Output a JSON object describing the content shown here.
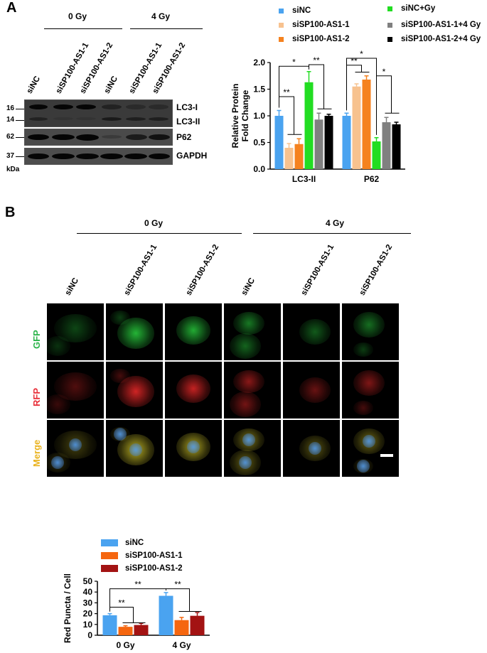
{
  "panelA": {
    "letter": "A",
    "dose_0": "0 Gy",
    "dose_4": "4 Gy",
    "lanes": [
      "siNC",
      "siSP100-AS1-1",
      "siSP100-AS1-2",
      "siNC",
      "siSP100-AS1-1",
      "siSP100-AS1-2"
    ],
    "markers": [
      "16",
      "14",
      "62",
      "37"
    ],
    "kda": "kDa",
    "bands": [
      "LC3-I",
      "LC3-II",
      "P62",
      "GAPDH"
    ]
  },
  "panelB": {
    "letter": "B",
    "dose_0": "0 Gy",
    "dose_4": "4 Gy",
    "columns": [
      "siNC",
      "siSP100-AS1-1",
      "siSP100-AS1-2",
      "siNC",
      "siSP100-AS1-1",
      "siSP100-AS1-2"
    ],
    "rows": [
      "GFP",
      "RFP",
      "Merge"
    ],
    "row_colors": {
      "GFP": "#2bb34a",
      "RFP": "#e8303a",
      "Merge": "#e9b21c"
    }
  },
  "chart_data": [
    {
      "type": "bar",
      "ylabel": "Relative Protein\nFold Change",
      "ylim": [
        0,
        2.0
      ],
      "yticks": [
        "0.0",
        "0.5",
        "1.0",
        "1.5",
        "2.0"
      ],
      "categories": [
        "LC3-II",
        "P62"
      ],
      "legend_position": "top",
      "series": [
        {
          "name": "siNC",
          "color": "#4aa3f0",
          "values": [
            1.0,
            1.0
          ],
          "errors": [
            0.1,
            0.05
          ]
        },
        {
          "name": "siSP100-AS1-1",
          "color": "#f7c28f",
          "values": [
            0.4,
            1.55
          ],
          "errors": [
            0.08,
            0.05
          ]
        },
        {
          "name": "siSP100-AS1-2",
          "color": "#f5821f",
          "values": [
            0.47,
            1.68
          ],
          "errors": [
            0.1,
            0.07
          ]
        },
        {
          "name": "siNC+Gy",
          "color": "#22dd22",
          "values": [
            1.63,
            0.52
          ],
          "errors": [
            0.2,
            0.07
          ]
        },
        {
          "name": "siSP100-AS1-1+4 Gy",
          "color": "#808080",
          "values": [
            0.93,
            0.88
          ],
          "errors": [
            0.12,
            0.09
          ]
        },
        {
          "name": "siSP100-AS1-2+4 Gy",
          "color": "#000000",
          "values": [
            1.0,
            0.84
          ],
          "errors": [
            0.03,
            0.04
          ]
        }
      ],
      "annotations": [
        "*",
        "**",
        "**",
        "**",
        "*",
        "*"
      ]
    },
    {
      "type": "bar",
      "ylabel": "Red Puncta / Cell",
      "ylim": [
        0,
        50
      ],
      "yticks": [
        "0",
        "10",
        "20",
        "30",
        "40",
        "50"
      ],
      "categories": [
        "0 Gy",
        "4 Gy"
      ],
      "legend_position": "top",
      "series": [
        {
          "name": "siNC",
          "color": "#4aa3f0",
          "values": [
            18.5,
            36.5
          ],
          "errors": [
            1.5,
            3.0
          ]
        },
        {
          "name": "siSP100-AS1-1",
          "color": "#f5660f",
          "values": [
            7.8,
            14.0
          ],
          "errors": [
            1.0,
            2.5
          ]
        },
        {
          "name": "siSP100-AS1-2",
          "color": "#a31313",
          "values": [
            9.5,
            18.0
          ],
          "errors": [
            1.5,
            3.0
          ]
        }
      ],
      "annotations": [
        "**",
        "**",
        "**"
      ]
    }
  ]
}
